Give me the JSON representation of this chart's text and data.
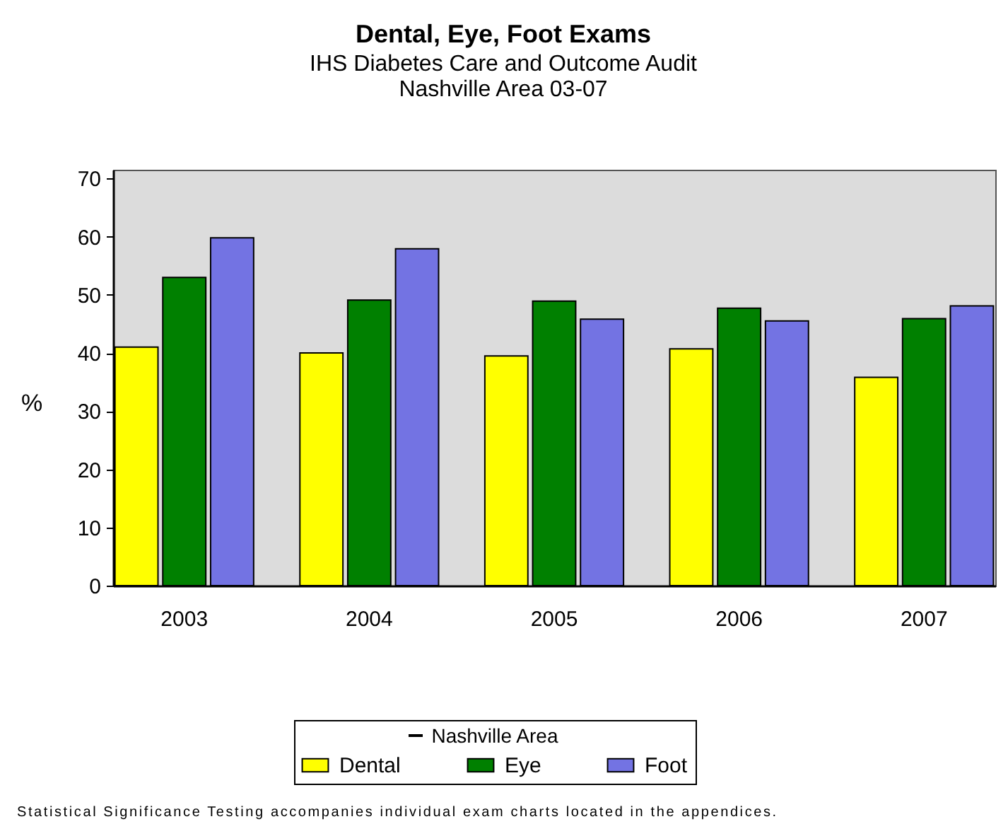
{
  "chart_data": {
    "type": "bar",
    "title": "Dental, Eye, Foot Exams",
    "subtitle": "IHS Diabetes Care and Outcome Audit\nNashville Area 03-07",
    "ylabel": "%",
    "legend_title": "Nashville Area",
    "legend": "bottom",
    "categories": [
      "2003",
      "2004",
      "2005",
      "2006",
      "2007"
    ],
    "series": [
      {
        "name": "Dental",
        "color": "#ffff00",
        "values": [
          41,
          40,
          39.5,
          40.7,
          35.8
        ]
      },
      {
        "name": "Eye",
        "color": "#008000",
        "values": [
          53.0,
          49.1,
          48.9,
          47.7,
          45.9
        ]
      },
      {
        "name": "Foot",
        "color": "#7373e3",
        "values": [
          59.8,
          57.9,
          45.8,
          45.5,
          48.1
        ]
      }
    ],
    "ylim": [
      0,
      71.5
    ],
    "yticks": [
      0,
      10,
      20,
      30,
      40,
      50,
      60,
      70
    ],
    "annotations": [
      "Statistical Significance Testing accompanies individual exam charts located in the appendices."
    ]
  }
}
